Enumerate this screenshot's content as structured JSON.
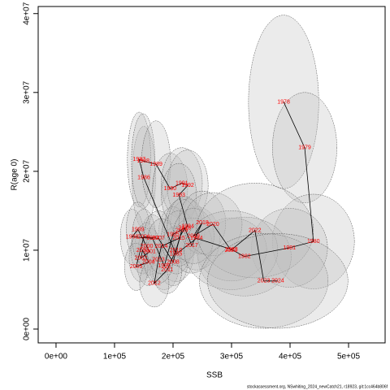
{
  "chart_data": {
    "type": "scatter",
    "x_label": "SSB",
    "y_label": "R(age 0)",
    "footnote": "stockassessment.org, NSwhiting_2024_newCatch21, r18923, git:1cc464b806f",
    "point_labels": [
      1978,
      1979,
      1980,
      1981,
      1982,
      1983,
      1984,
      1985,
      1986,
      1987,
      1988,
      1989,
      1990,
      1991,
      1992,
      1993,
      1994,
      1995,
      1996,
      1997,
      1998,
      1999,
      2000,
      2001,
      2002,
      2003,
      2004,
      2005,
      2006,
      2007,
      2008,
      2009,
      2010,
      2011,
      2012,
      2013,
      2014,
      2015,
      2016,
      2017,
      2018,
      2019,
      2020,
      2021,
      2022,
      2023,
      2024
    ],
    "x": [
      389000,
      425000,
      440000,
      399000,
      322000,
      300000,
      240000,
      205000,
      150000,
      142000,
      149000,
      171000,
      195000,
      215000,
      225000,
      210000,
      225000,
      200000,
      185000,
      165000,
      130000,
      140000,
      155000,
      160000,
      145000,
      148000,
      158000,
      137000,
      150000,
      175000,
      200000,
      215000,
      205000,
      190000,
      168000,
      175000,
      180000,
      210000,
      220000,
      232000,
      250000,
      235000,
      268000,
      299000,
      340000,
      355000,
      379000
    ],
    "y": [
      28800000,
      23000000,
      11100000,
      10300000,
      9200000,
      10100000,
      11500000,
      9500000,
      19200000,
      21500000,
      21300000,
      20900000,
      17800000,
      18500000,
      18200000,
      17000000,
      13000000,
      12000000,
      8000000,
      11500000,
      11700000,
      12600000,
      10500000,
      9800000,
      9000000,
      10000000,
      8500000,
      7900000,
      11700000,
      11500000,
      8500000,
      12500000,
      10000000,
      7500000,
      5800000,
      8800000,
      10500000,
      11500000,
      12800000,
      10600000,
      13500000,
      11800000,
      13300000,
      10000000,
      12500000,
      6100000,
      6100000
    ],
    "x_halfwidth": [
      60000,
      55000,
      70000,
      65000,
      80000,
      60000,
      40000,
      30000,
      20000,
      20000,
      20000,
      25000,
      30000,
      35000,
      35000,
      30000,
      30000,
      25000,
      25000,
      20000,
      20000,
      20000,
      20000,
      20000,
      20000,
      20000,
      20000,
      20000,
      20000,
      25000,
      25000,
      30000,
      25000,
      25000,
      25000,
      25000,
      25000,
      30000,
      30000,
      35000,
      40000,
      35000,
      50000,
      80000,
      100000,
      110000,
      120000
    ],
    "y_halfwidth": [
      11000000,
      7000000,
      6000000,
      5000000,
      5000000,
      4000000,
      4000000,
      3500000,
      6500000,
      6000000,
      6000000,
      5500000,
      4500000,
      4500000,
      4500000,
      4000000,
      3500000,
      3500000,
      3000000,
      3000000,
      3500000,
      3500000,
      3000000,
      3000000,
      3000000,
      3000000,
      3000000,
      3000000,
      3500000,
      3500000,
      3000000,
      4000000,
      3000000,
      3000000,
      3000000,
      3000000,
      3500000,
      3500000,
      4000000,
      3500000,
      4000000,
      3500000,
      4000000,
      5000000,
      6000000,
      6000000,
      6000000
    ],
    "label_color": "#ff0000",
    "line_color": "#000000",
    "ellipse_color": "#bebebe",
    "xlim": [
      -30500,
      562500
    ],
    "ylim": [
      -1750000,
      40900000
    ],
    "xticks": [
      {
        "value": 0,
        "label": "0e+00"
      },
      {
        "value": 100000,
        "label": "1e+05"
      },
      {
        "value": 200000,
        "label": "2e+05"
      },
      {
        "value": 300000,
        "label": "3e+05"
      },
      {
        "value": 400000,
        "label": "4e+05"
      },
      {
        "value": 500000,
        "label": "5e+05"
      }
    ],
    "yticks": [
      {
        "value": 0,
        "label": "0e+00"
      },
      {
        "value": 10000000,
        "label": "1e+07"
      },
      {
        "value": 20000000,
        "label": "2e+07"
      },
      {
        "value": 30000000,
        "label": "3e+07"
      },
      {
        "value": 40000000,
        "label": "4e+07"
      }
    ]
  }
}
